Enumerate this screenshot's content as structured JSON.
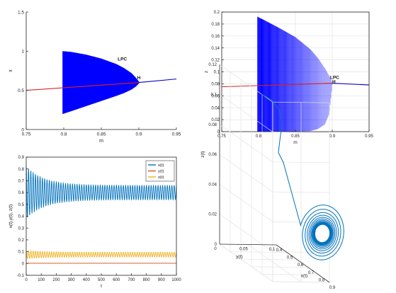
{
  "colors": {
    "blue": "#0000ff",
    "red": "#dd2222",
    "branch_blue": "#0000cc",
    "orbit_blue": "#0072bd",
    "orange": "#d95319",
    "yellow": "#edb120",
    "axis": "#222222",
    "grid": "#e3e3e3"
  },
  "chart_data": [
    {
      "type": "line",
      "title": "",
      "xlabel": "m",
      "ylabel": "x",
      "xlim": [
        0.75,
        0.95
      ],
      "ylim": [
        0,
        1.5
      ],
      "xticks": [
        "0.75",
        "0.8",
        "0.85",
        "0.9",
        "0.95"
      ],
      "yticks": [
        "0",
        "0.5",
        "1",
        "1.5"
      ],
      "grid": false,
      "annotations": [
        {
          "text": "LPC",
          "x": 0.878,
          "y": 0.88
        },
        {
          "text": "H",
          "x": 0.9,
          "y": 0.64
        }
      ],
      "series": [
        {
          "kind": "equilibrium_unstable",
          "color": "red",
          "x": [
            0.75,
            0.9
          ],
          "y": [
            0.5,
            0.6
          ]
        },
        {
          "kind": "equilibrium_stable",
          "color": "blue",
          "x": [
            0.9,
            0.95
          ],
          "y": [
            0.6,
            0.645
          ]
        },
        {
          "kind": "limit_cycle_envelope",
          "color": "blue",
          "x": [
            0.7988,
            0.81,
            0.83,
            0.85,
            0.87,
            0.88,
            0.89,
            0.896,
            0.9
          ],
          "upper": [
            1.0,
            0.99,
            0.955,
            0.905,
            0.835,
            0.785,
            0.72,
            0.66,
            0.61
          ],
          "lower": [
            0.2,
            0.235,
            0.3,
            0.365,
            0.43,
            0.465,
            0.51,
            0.55,
            0.59
          ]
        }
      ]
    },
    {
      "type": "line",
      "title": "",
      "xlabel": "m",
      "ylabel": "z",
      "xlim": [
        0.75,
        0.95
      ],
      "ylim": [
        0,
        0.2
      ],
      "xticks": [
        "0.75",
        "0.8",
        "0.85",
        "0.9",
        "0.95"
      ],
      "yticks": [
        "0",
        "0.02",
        "0.04",
        "0.06",
        "0.08",
        "0.1",
        "0.12",
        "0.14",
        "0.16",
        "0.18",
        "0.2"
      ],
      "grid": true,
      "annotations": [
        {
          "text": "LPC",
          "x": 0.897,
          "y": 0.088
        },
        {
          "text": "H",
          "x": 0.9,
          "y": 0.081
        }
      ],
      "series": [
        {
          "kind": "equilibrium_unstable",
          "color": "red",
          "x": [
            0.75,
            0.9
          ],
          "y": [
            0.075,
            0.081
          ]
        },
        {
          "kind": "equilibrium_stable",
          "color": "blue",
          "x": [
            0.9,
            0.95
          ],
          "y": [
            0.081,
            0.078
          ]
        },
        {
          "kind": "limit_cycle_envelope",
          "color": "blue",
          "x": [
            0.7988,
            0.81,
            0.83,
            0.85,
            0.87,
            0.88,
            0.89,
            0.896,
            0.9
          ],
          "upper": [
            0.192,
            0.185,
            0.172,
            0.158,
            0.138,
            0.124,
            0.106,
            0.093,
            0.082
          ],
          "lower": [
            0.0,
            0.0,
            0.0,
            0.0,
            0.001,
            0.004,
            0.012,
            0.03,
            0.078
          ]
        }
      ]
    },
    {
      "type": "line",
      "title": "",
      "xlabel": "t",
      "ylabel": "x(t),y(t), z(t)",
      "xlim": [
        0,
        1000
      ],
      "ylim": [
        -0.1,
        0.9
      ],
      "xticks": [
        "0",
        "100",
        "200",
        "300",
        "400",
        "500",
        "600",
        "700",
        "800",
        "900",
        "1000"
      ],
      "yticks": [
        "-0.1",
        "0",
        "0.1",
        "0.2",
        "0.3",
        "0.4",
        "0.5",
        "0.6",
        "0.7",
        "0.8",
        "0.9"
      ],
      "grid": false,
      "legend": "top-right",
      "series": [
        {
          "name": "x(t)",
          "color": "orbit_blue",
          "center": 0.6,
          "amp_start": 0.22,
          "amp_end": 0.06,
          "period": 15.4
        },
        {
          "name": "y(t)",
          "color": "orange",
          "center": 0.002,
          "amp_start": 0.002,
          "amp_end": 0.001,
          "period": 15.4
        },
        {
          "name": "z(t)",
          "color": "yellow",
          "center": 0.075,
          "amp_start": 0.035,
          "amp_end": 0.02,
          "period": 15.4
        }
      ]
    },
    {
      "type": "line3d",
      "title": "",
      "xlabel": "x(t)",
      "ylabel": "y(t)",
      "zlabel": "z(t)",
      "xlim": [
        0.4,
        0.9
      ],
      "ylim": [
        0,
        0.1
      ],
      "zlim": [
        0,
        0.12
      ],
      "xticks": [
        "0.4",
        "0.5",
        "0.6",
        "0.7",
        "0.8",
        "0.9"
      ],
      "yticks": [
        "0",
        "0.05",
        "0.1"
      ],
      "zticks": [
        "0",
        "0.02",
        "0.04",
        "0.06",
        "0.08",
        "0.1",
        "0.12"
      ],
      "grid": true,
      "series": [
        {
          "color": "orbit_blue",
          "start": {
            "x": 0.8,
            "y": 0.0,
            "z": 0.12
          },
          "spiral_center": {
            "x": 0.6,
            "y": 0.002,
            "z": 0.075
          },
          "r_start": 0.2,
          "r_end": 0.06,
          "turns": 14
        }
      ]
    }
  ]
}
